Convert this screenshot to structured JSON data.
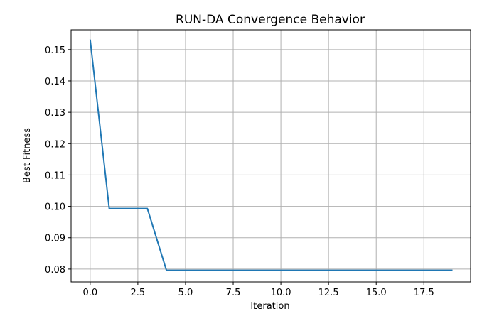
{
  "chart_data": {
    "type": "line",
    "title": "RUN-DA Convergence Behavior",
    "xlabel": "Iteration",
    "ylabel": "Best Fitness",
    "xlim": [
      -1.0,
      19.95
    ],
    "ylim": [
      0.0759,
      0.1563
    ],
    "xticks": [
      0.0,
      2.5,
      5.0,
      7.5,
      10.0,
      12.5,
      15.0,
      17.5
    ],
    "xtick_labels": [
      "0.0",
      "2.5",
      "5.0",
      "7.5",
      "10.0",
      "12.5",
      "15.0",
      "17.5"
    ],
    "yticks": [
      0.08,
      0.09,
      0.1,
      0.11,
      0.12,
      0.13,
      0.14,
      0.15
    ],
    "ytick_labels": [
      "0.08",
      "0.09",
      "0.10",
      "0.11",
      "0.12",
      "0.13",
      "0.14",
      "0.15"
    ],
    "grid": true,
    "series": [
      {
        "color": "#1f77b4",
        "x": [
          0,
          1,
          2,
          3,
          4,
          5,
          6,
          7,
          8,
          9,
          10,
          11,
          12,
          13,
          14,
          15,
          16,
          17,
          18,
          19
        ],
        "y": [
          0.1532,
          0.0993,
          0.0993,
          0.0993,
          0.0796,
          0.0796,
          0.0796,
          0.0796,
          0.0796,
          0.0796,
          0.0796,
          0.0796,
          0.0796,
          0.0796,
          0.0796,
          0.0796,
          0.0796,
          0.0796,
          0.0796,
          0.0796
        ]
      }
    ]
  }
}
